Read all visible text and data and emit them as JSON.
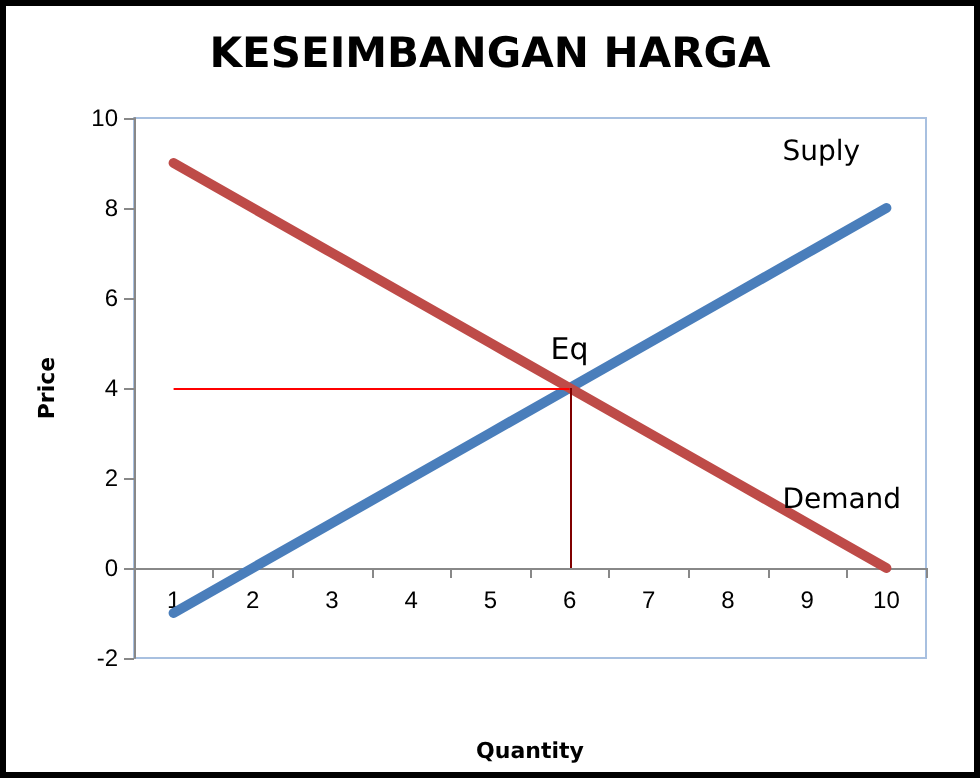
{
  "chart_data": {
    "type": "line",
    "title": "KESEIMBANGAN HARGA",
    "xlabel": "Quantity",
    "ylabel": "Price",
    "categories": [
      "1",
      "2",
      "3",
      "4",
      "5",
      "6",
      "7",
      "8",
      "9",
      "10"
    ],
    "series": [
      {
        "name": "Suply",
        "color": "#4a7ebb",
        "values": [
          -1,
          0,
          1,
          2,
          3,
          4,
          5,
          6,
          7,
          8
        ]
      },
      {
        "name": "Demand",
        "color": "#be4b48",
        "values": [
          9,
          8,
          7,
          6,
          5,
          4,
          3,
          2,
          1,
          0
        ]
      }
    ],
    "ylim": [
      -2,
      10
    ],
    "yticks": [
      -2,
      0,
      2,
      4,
      6,
      8,
      10
    ],
    "ref_lines": [
      {
        "axis": "y",
        "value": 4,
        "color": "#ff0000"
      },
      {
        "axis": "x",
        "value": "6",
        "color": "#800000"
      }
    ],
    "annotations": [
      {
        "text": "Eq",
        "x": "6",
        "y": 4
      }
    ],
    "grid": false,
    "legend": false,
    "marker": "none",
    "line_style": "solid"
  }
}
